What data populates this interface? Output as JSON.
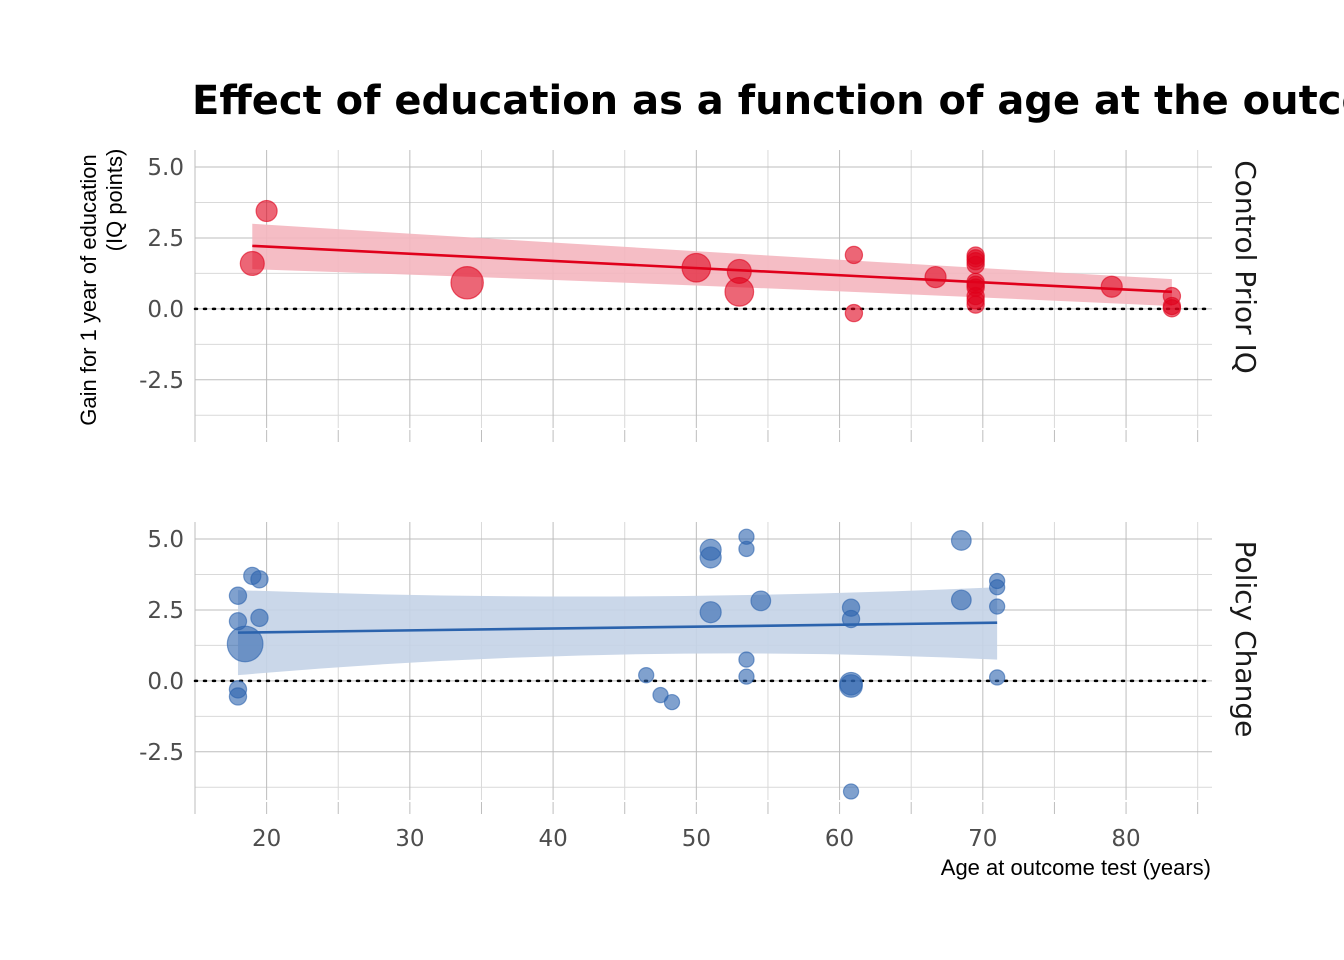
{
  "chart_data": {
    "type": "scatter",
    "title": "Effect of education as a function of age at the outcome test",
    "xlabel": "Age at outcome test (years)",
    "ylabel_line1": "Gain for 1 year of education",
    "ylabel_line2": "(IQ points)",
    "xlim": [
      15,
      86
    ],
    "x_ticks": [
      20,
      30,
      40,
      50,
      60,
      70,
      80
    ],
    "x_tick_labels": [
      "20",
      "30",
      "40",
      "50",
      "60",
      "70",
      "80"
    ],
    "ylim": [
      -4.2,
      5.6
    ],
    "y_ticks": [
      5.0,
      2.5,
      0.0,
      -2.5
    ],
    "y_tick_labels": [
      "5.0",
      "2.5",
      "0.0",
      "-2.5"
    ],
    "reference_line_y": 0,
    "grid": true,
    "panels": [
      {
        "label": "Control Prior IQ",
        "color": "#e0001b",
        "fill_color": "#f4b6bf",
        "trend": {
          "x": [
            19,
            83.2
          ],
          "y": [
            2.22,
            0.6
          ],
          "lower": [
            1.4,
            0.1
          ],
          "upper": [
            3.0,
            1.05
          ]
        },
        "points": [
          {
            "x": 20,
            "y": 3.45,
            "size": 2
          },
          {
            "x": 19,
            "y": 1.6,
            "size": 3
          },
          {
            "x": 34,
            "y": 0.92,
            "size": 7
          },
          {
            "x": 50,
            "y": 1.45,
            "size": 5
          },
          {
            "x": 53,
            "y": 1.32,
            "size": 3
          },
          {
            "x": 53,
            "y": 0.6,
            "size": 5
          },
          {
            "x": 61,
            "y": 1.9,
            "size": 1
          },
          {
            "x": 61,
            "y": -0.15,
            "size": 1
          },
          {
            "x": 66.7,
            "y": 1.12,
            "size": 2
          },
          {
            "x": 69.5,
            "y": 1.88,
            "size": 1
          },
          {
            "x": 69.5,
            "y": 1.78,
            "size": 1
          },
          {
            "x": 69.5,
            "y": 1.68,
            "size": 1
          },
          {
            "x": 69.5,
            "y": 1.55,
            "size": 1
          },
          {
            "x": 69.5,
            "y": 0.95,
            "size": 1
          },
          {
            "x": 69.5,
            "y": 0.85,
            "size": 1
          },
          {
            "x": 69.5,
            "y": 0.75,
            "size": 1
          },
          {
            "x": 69.5,
            "y": 0.45,
            "size": 1
          },
          {
            "x": 69.5,
            "y": 0.3,
            "size": 1
          },
          {
            "x": 69.5,
            "y": 0.15,
            "size": 1
          },
          {
            "x": 79,
            "y": 0.78,
            "size": 2
          },
          {
            "x": 83.2,
            "y": 0.45,
            "size": 1
          },
          {
            "x": 83.2,
            "y": 0.1,
            "size": 1
          },
          {
            "x": 83.2,
            "y": 0.02,
            "size": 1
          }
        ]
      },
      {
        "label": "Policy Change",
        "color": "#2b63ad",
        "fill_color": "#c4d3e7",
        "trend": {
          "x": [
            18,
            71
          ],
          "y": [
            1.7,
            2.05
          ],
          "lower": [
            0.2,
            0.75
          ],
          "upper": [
            3.2,
            3.3
          ]
        },
        "points": [
          {
            "x": 18.5,
            "y": 1.3,
            "size": 9
          },
          {
            "x": 18,
            "y": 3.0,
            "size": 1
          },
          {
            "x": 18,
            "y": 2.1,
            "size": 1
          },
          {
            "x": 18,
            "y": -0.3,
            "size": 1
          },
          {
            "x": 18,
            "y": -0.55,
            "size": 1
          },
          {
            "x": 19,
            "y": 3.7,
            "size": 1
          },
          {
            "x": 19.5,
            "y": 3.58,
            "size": 1
          },
          {
            "x": 19.5,
            "y": 2.22,
            "size": 1
          },
          {
            "x": 46.5,
            "y": 0.2,
            "size": 0.6
          },
          {
            "x": 47.5,
            "y": -0.5,
            "size": 0.6
          },
          {
            "x": 48.3,
            "y": -0.75,
            "size": 0.6
          },
          {
            "x": 51,
            "y": 4.62,
            "size": 2
          },
          {
            "x": 51,
            "y": 4.35,
            "size": 2
          },
          {
            "x": 51,
            "y": 2.42,
            "size": 2
          },
          {
            "x": 53.5,
            "y": 5.08,
            "size": 0.6
          },
          {
            "x": 53.5,
            "y": 4.65,
            "size": 0.6
          },
          {
            "x": 53.5,
            "y": 0.75,
            "size": 0.6
          },
          {
            "x": 53.5,
            "y": 0.15,
            "size": 0.6
          },
          {
            "x": 54.5,
            "y": 2.82,
            "size": 1.6
          },
          {
            "x": 60.8,
            "y": 2.58,
            "size": 1
          },
          {
            "x": 60.8,
            "y": 2.18,
            "size": 1
          },
          {
            "x": 60.8,
            "y": -0.1,
            "size": 2.5
          },
          {
            "x": 60.8,
            "y": -0.18,
            "size": 2.5
          },
          {
            "x": 60.8,
            "y": -3.9,
            "size": 0.6
          },
          {
            "x": 68.5,
            "y": 4.95,
            "size": 1.6
          },
          {
            "x": 68.5,
            "y": 2.85,
            "size": 1.6
          },
          {
            "x": 71,
            "y": 3.52,
            "size": 0.6
          },
          {
            "x": 71,
            "y": 3.3,
            "size": 0.6
          },
          {
            "x": 71,
            "y": 2.62,
            "size": 0.6
          },
          {
            "x": 71,
            "y": 0.12,
            "size": 0.6
          }
        ]
      }
    ]
  }
}
